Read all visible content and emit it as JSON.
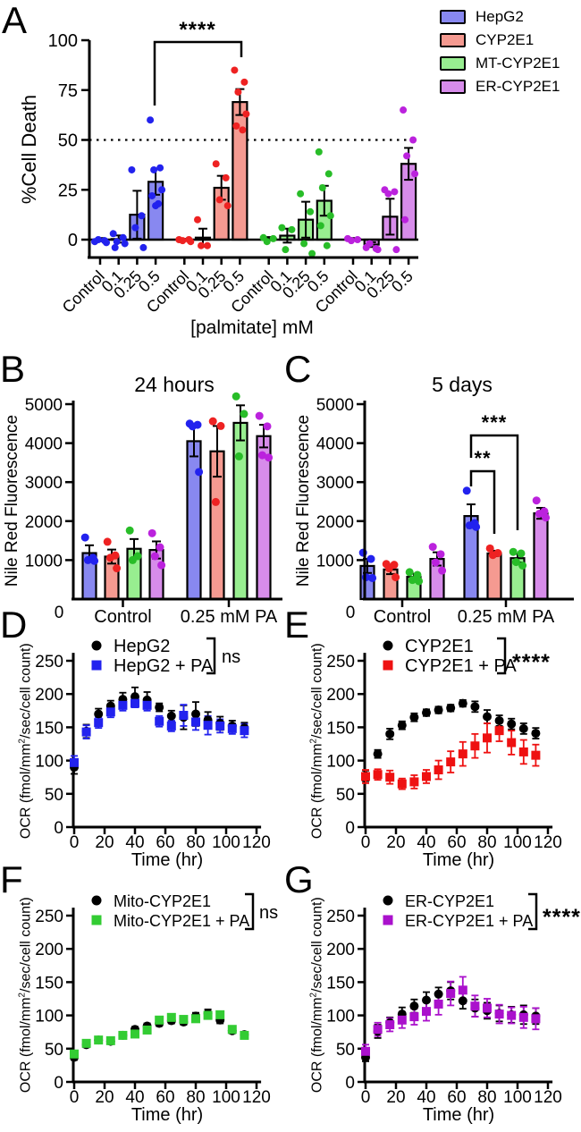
{
  "legend": {
    "items": [
      {
        "label": "HepG2",
        "fill": "#8888f0",
        "point": "#2222ee"
      },
      {
        "label": "CYP2E1",
        "fill": "#f59a91",
        "point": "#ee2222"
      },
      {
        "label": "MT-CYP2E1",
        "fill": "#98ee90",
        "point": "#28bd28"
      },
      {
        "label": "ER-CYP2E1",
        "fill": "#d78cea",
        "point": "#bb22dd"
      }
    ]
  },
  "labels": {
    "ocr_pre": "OCR  (fmol/mm",
    "ocr_sup": "2",
    "ocr_post": "/sec/cell count)",
    "nile_red": "Nile Red Fluorescence"
  },
  "chart_data": [
    {
      "panel_label": "A",
      "type": "bar",
      "ylabel": "%Cell Death",
      "xlabel": "[palmitate] mM",
      "ylim": [
        0,
        100
      ],
      "yticks": [
        0,
        25,
        50,
        75,
        100
      ],
      "dotted_line": 50,
      "categories": [
        "Control",
        "0.1",
        "0.25",
        "0.5"
      ],
      "sig": {
        "label": "****"
      },
      "groups": [
        {
          "name": "HepG2",
          "means": [
            0,
            0.3,
            12.5,
            29
          ],
          "errors": [
            0.8,
            1.8,
            12,
            6.5
          ],
          "points": [
            [
              -1,
              -0.5,
              0,
              -1.5
            ],
            [
              3,
              1,
              -1,
              -2,
              -4
            ],
            [
              35,
              12,
              6,
              -4
            ],
            [
              60,
              36,
              35,
              25,
              22,
              18,
              17
            ]
          ]
        },
        {
          "name": "CYP2E1",
          "means": [
            0,
            1,
            26,
            69
          ],
          "errors": [
            0.4,
            4.5,
            6,
            6.5
          ],
          "points": [
            [
              0,
              0,
              -0.5,
              -1
            ],
            [
              10,
              -3,
              -3
            ],
            [
              38,
              31,
              20,
              17
            ],
            [
              85,
              79,
              74,
              63,
              57,
              55
            ]
          ]
        },
        {
          "name": "MT-CYP2E1",
          "means": [
            0.5,
            2,
            10,
            19.5
          ],
          "errors": [
            0.8,
            3.5,
            9,
            7.5
          ],
          "points": [
            [
              1,
              0.5,
              -1
            ],
            [
              6,
              5,
              -5
            ],
            [
              23,
              14,
              -2,
              -7
            ],
            [
              44,
              33,
              26,
              12,
              7,
              -3
            ]
          ]
        },
        {
          "name": "ER-CYP2E1",
          "means": [
            0.3,
            -2.5,
            11.5,
            38
          ],
          "errors": [
            0.5,
            1.2,
            9,
            8
          ],
          "points": [
            [
              0.5,
              0,
              -0.5
            ],
            [
              -4,
              -4.5,
              -2,
              -5
            ],
            [
              25,
              24,
              23,
              -5
            ],
            [
              65,
              50,
              42,
              33,
              10
            ]
          ]
        }
      ]
    },
    {
      "panel_label": "B",
      "type": "bar2",
      "title": "24 hours",
      "ylabel": "Nile Red Fluorescence",
      "ylim": [
        0,
        5000
      ],
      "yticks": [
        1000,
        2000,
        3000,
        4000,
        5000
      ],
      "zero_label": "0",
      "conditions": [
        {
          "label": "Control",
          "means": [
            1180,
            1090,
            1290,
            1260
          ],
          "errors": [
            200,
            180,
            250,
            220
          ],
          "points": [
            [
              1580,
              1060,
              1000,
              980
            ],
            [
              1470,
              1120,
              1060,
              790
            ],
            [
              1760,
              1100,
              1000
            ],
            [
              1690,
              1330,
              1100,
              870
            ]
          ]
        },
        {
          "label": "0.25 mM PA",
          "means": [
            4050,
            3790,
            4520,
            4180
          ],
          "errors": [
            390,
            650,
            450,
            290
          ],
          "points": [
            [
              4500,
              4470,
              4430,
              3260
            ],
            [
              4560,
              4440,
              2490
            ],
            [
              5200,
              4750,
              3660
            ],
            [
              4700,
              4430,
              3690,
              3630
            ]
          ]
        }
      ]
    },
    {
      "panel_label": "C",
      "type": "bar2",
      "title": "5 days",
      "ylabel": "Nile Red Fluorescence",
      "ylim": [
        0,
        5000
      ],
      "yticks": [
        1000,
        2000,
        3000,
        4000,
        5000
      ],
      "zero_label": "0",
      "sigs": [
        {
          "label": "**"
        },
        {
          "label": "***"
        }
      ],
      "conditions": [
        {
          "label": "Control",
          "means": [
            850,
            760,
            570,
            1030
          ],
          "errors": [
            180,
            120,
            80,
            170
          ],
          "points": [
            [
              1190,
              1030,
              560,
              540
            ],
            [
              900,
              880,
              790,
              560
            ],
            [
              690,
              620,
              490,
              460
            ],
            [
              1340,
              1150,
              940,
              730
            ]
          ]
        },
        {
          "label": "0.25 mM PA",
          "means": [
            2130,
            1170,
            1050,
            2200
          ],
          "errors": [
            300,
            70,
            110,
            140
          ],
          "points": [
            [
              2780,
              1950,
              1890,
              1850
            ],
            [
              1300,
              1180,
              1130
            ],
            [
              1210,
              1170,
              950,
              860
            ],
            [
              2530,
              2250,
              2190,
              2090
            ]
          ]
        }
      ]
    },
    {
      "panel_label": "D",
      "type": "scatter",
      "xlabel": "Time (hr)",
      "sig": "ns",
      "ylim": [
        0,
        250
      ],
      "yticks": [
        0,
        50,
        100,
        150,
        200,
        250
      ],
      "xticks": [
        0,
        20,
        40,
        60,
        80,
        100,
        120
      ],
      "x": [
        0,
        8,
        16,
        24,
        32,
        40,
        48,
        56,
        64,
        72,
        80,
        88,
        96,
        104,
        112
      ],
      "series": [
        {
          "name": "HepG2",
          "color": "#000000",
          "marker": "circle",
          "values": [
            90,
            144,
            170,
            182,
            192,
            196,
            191,
            180,
            167,
            165,
            170,
            161,
            156,
            152,
            149
          ],
          "errors": [
            10,
            10,
            8,
            8,
            10,
            14,
            12,
            6,
            8,
            18,
            18,
            12,
            10,
            8,
            8
          ]
        },
        {
          "name": "HepG2 + PA",
          "color": "#2222ee",
          "marker": "square",
          "values": [
            97,
            143,
            157,
            173,
            183,
            186,
            183,
            159,
            152,
            168,
            158,
            153,
            152,
            148,
            145
          ],
          "errors": [
            10,
            10,
            8,
            8,
            8,
            6,
            8,
            8,
            8,
            16,
            12,
            14,
            10,
            8,
            10
          ]
        }
      ]
    },
    {
      "panel_label": "E",
      "type": "scatter",
      "xlabel": "Time (hr)",
      "sig": "****",
      "ylim": [
        0,
        250
      ],
      "yticks": [
        0,
        50,
        100,
        150,
        200,
        250
      ],
      "xticks": [
        0,
        20,
        40,
        60,
        80,
        100,
        120
      ],
      "x": [
        0,
        8,
        16,
        24,
        32,
        40,
        48,
        56,
        64,
        72,
        80,
        88,
        96,
        104,
        112
      ],
      "series": [
        {
          "name": "CYP2E1",
          "color": "#000000",
          "marker": "circle",
          "values": [
            77,
            110,
            140,
            153,
            165,
            172,
            176,
            179,
            186,
            181,
            166,
            160,
            155,
            148,
            141
          ],
          "errors": [
            8,
            6,
            8,
            6,
            6,
            5,
            5,
            5,
            5,
            8,
            10,
            8,
            8,
            8,
            8
          ]
        },
        {
          "name": "CYP2E1 + PA",
          "color": "#ee1111",
          "marker": "square",
          "values": [
            76,
            79,
            75,
            65,
            68,
            76,
            86,
            98,
            110,
            122,
            134,
            145,
            127,
            113,
            108
          ],
          "errors": [
            10,
            8,
            10,
            8,
            10,
            10,
            14,
            16,
            18,
            18,
            22,
            16,
            18,
            18,
            16
          ]
        }
      ]
    },
    {
      "panel_label": "F",
      "type": "scatter",
      "xlabel": "Time (hr)",
      "sig": "ns",
      "ylim": [
        0,
        250
      ],
      "yticks": [
        0,
        50,
        100,
        150,
        200,
        250
      ],
      "xticks": [
        0,
        20,
        40,
        60,
        80,
        100,
        120
      ],
      "x": [
        0,
        8,
        16,
        24,
        32,
        40,
        48,
        56,
        64,
        72,
        80,
        88,
        96,
        104,
        112
      ],
      "series": [
        {
          "name": "Mito-CYP2E1",
          "color": "#000000",
          "marker": "circle",
          "values": [
            37,
            56,
            63,
            61,
            70,
            79,
            84,
            88,
            92,
            90,
            99,
            103,
            93,
            77,
            71
          ],
          "errors": [
            4,
            4,
            4,
            4,
            4,
            4,
            4,
            4,
            4,
            4,
            5,
            6,
            5,
            4,
            4
          ]
        },
        {
          "name": "Mito-CYP2E1 + PA",
          "color": "#33cc33",
          "marker": "square",
          "values": [
            42,
            58,
            63,
            62,
            70,
            72,
            78,
            93,
            97,
            94,
            95,
            100,
            101,
            79,
            70
          ],
          "errors": [
            4,
            4,
            4,
            4,
            4,
            4,
            4,
            4,
            4,
            4,
            4,
            5,
            5,
            4,
            4
          ]
        }
      ]
    },
    {
      "panel_label": "G",
      "type": "scatter",
      "xlabel": "Time (hr)",
      "sig": "****",
      "ylim": [
        0,
        250
      ],
      "yticks": [
        0,
        50,
        100,
        150,
        200,
        250
      ],
      "xticks": [
        0,
        20,
        40,
        60,
        80,
        100,
        120
      ],
      "x": [
        0,
        8,
        16,
        24,
        32,
        40,
        48,
        56,
        64,
        72,
        80,
        88,
        96,
        104,
        112
      ],
      "series": [
        {
          "name": "ER-CYP2E1",
          "color": "#000000",
          "marker": "circle",
          "values": [
            37,
            76,
            89,
            102,
            114,
            123,
            132,
            137,
            122,
            111,
            107,
            103,
            101,
            101,
            99
          ],
          "errors": [
            6,
            10,
            8,
            10,
            10,
            12,
            10,
            13,
            12,
            13,
            12,
            12,
            12,
            14,
            12
          ]
        },
        {
          "name": "ER-CYP2E1 + PA",
          "color": "#aa11cc",
          "marker": "square",
          "values": [
            46,
            79,
            86,
            93,
            98,
            106,
            117,
            133,
            138,
            114,
            111,
            102,
            100,
            97,
            95
          ],
          "errors": [
            10,
            10,
            10,
            12,
            12,
            14,
            16,
            18,
            20,
            16,
            14,
            14,
            12,
            16,
            16
          ]
        }
      ]
    }
  ]
}
